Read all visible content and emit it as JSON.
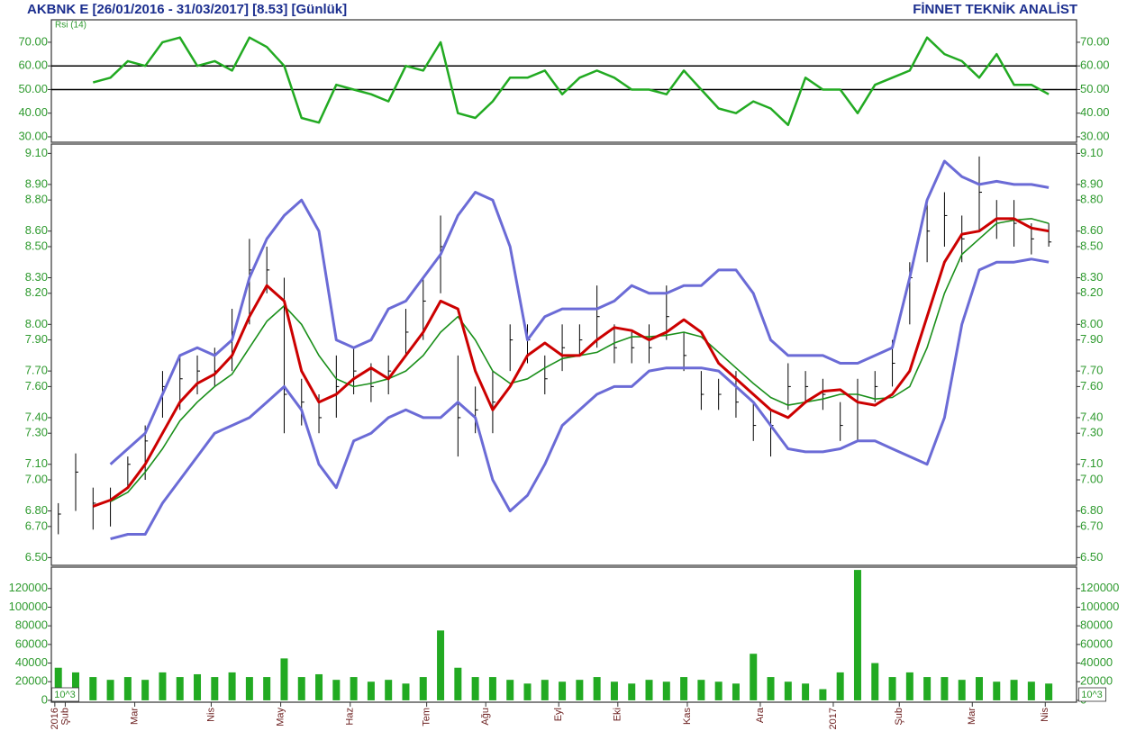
{
  "header": {
    "title": "AKBNK E  [26/01/2016 - 31/03/2017]  [8.53]  [Günlük]",
    "brand": "FİNNET TEKNİK ANALİST"
  },
  "chart_data": [
    {
      "type": "line",
      "label": "Rsi (14)",
      "color": "#22aa22",
      "levels": [
        50,
        60
      ],
      "x": [
        2,
        7,
        12,
        17,
        22,
        27,
        32,
        37,
        42,
        47,
        52,
        57,
        62,
        67,
        72,
        77,
        82,
        87,
        92,
        97,
        102,
        107,
        112,
        117,
        122,
        127,
        132,
        137,
        142,
        147,
        152,
        157,
        162,
        167,
        172,
        177,
        182,
        187,
        192,
        197,
        202,
        207,
        212,
        217,
        222,
        227,
        232,
        237,
        242,
        247,
        252,
        257,
        262,
        267,
        272,
        277,
        282,
        287
      ],
      "values": [
        null,
        null,
        53,
        55,
        62,
        60,
        70,
        72,
        60,
        62,
        58,
        72,
        68,
        60,
        38,
        36,
        52,
        50,
        48,
        45,
        60,
        58,
        70,
        40,
        38,
        45,
        55,
        55,
        58,
        48,
        55,
        58,
        55,
        50,
        50,
        48,
        58,
        50,
        42,
        40,
        45,
        42,
        35,
        55,
        50,
        50,
        40,
        52,
        55,
        58,
        72,
        65,
        62,
        55,
        65,
        52,
        52,
        48
      ],
      "xlim": [
        0,
        295
      ],
      "ylim": [
        27.7,
        79.5
      ],
      "yticks": [
        {
          "value": 30,
          "label": "30.00"
        },
        {
          "value": 40,
          "label": "40.00"
        },
        {
          "value": 50,
          "label": "50.00"
        },
        {
          "value": 60,
          "label": "60.00"
        },
        {
          "value": 70,
          "label": "70.00"
        }
      ]
    },
    {
      "type": "hlc",
      "color": "#000000",
      "x": [
        2,
        7,
        12,
        17,
        22,
        27,
        32,
        37,
        42,
        47,
        52,
        57,
        62,
        67,
        72,
        77,
        82,
        87,
        92,
        97,
        102,
        107,
        112,
        117,
        122,
        127,
        132,
        137,
        142,
        147,
        152,
        157,
        162,
        167,
        172,
        177,
        182,
        187,
        192,
        197,
        202,
        207,
        212,
        217,
        222,
        227,
        232,
        237,
        242,
        247,
        252,
        257,
        262,
        267,
        272,
        277,
        282,
        287
      ],
      "high": [
        6.85,
        7.17,
        6.95,
        6.95,
        7.15,
        7.35,
        7.7,
        7.8,
        7.8,
        7.85,
        8.1,
        8.55,
        8.5,
        8.3,
        7.65,
        7.55,
        7.8,
        7.85,
        7.75,
        7.8,
        8.1,
        8.3,
        8.7,
        7.8,
        7.6,
        7.7,
        8.0,
        8.0,
        7.8,
        8.0,
        8.0,
        8.25,
        8.0,
        7.95,
        8.0,
        8.25,
        7.95,
        7.7,
        7.65,
        7.7,
        7.5,
        7.45,
        7.75,
        7.7,
        7.65,
        7.5,
        7.65,
        7.7,
        7.9,
        8.4,
        8.8,
        8.85,
        8.7,
        9.08,
        8.8,
        8.8,
        8.65,
        8.65
      ],
      "low": [
        6.65,
        6.8,
        6.68,
        6.7,
        6.95,
        7.0,
        7.4,
        7.45,
        7.55,
        7.6,
        7.7,
        8.0,
        8.2,
        7.3,
        7.35,
        7.3,
        7.4,
        7.55,
        7.5,
        7.55,
        7.8,
        7.9,
        8.2,
        7.15,
        7.3,
        7.3,
        7.7,
        7.75,
        7.55,
        7.7,
        7.8,
        7.85,
        7.75,
        7.75,
        7.75,
        7.9,
        7.7,
        7.45,
        7.45,
        7.4,
        7.25,
        7.15,
        7.45,
        7.5,
        7.45,
        7.25,
        7.25,
        7.5,
        7.6,
        8.0,
        8.4,
        8.5,
        8.4,
        8.6,
        8.55,
        8.5,
        8.45,
        8.5
      ],
      "close": [
        6.78,
        7.05,
        6.85,
        6.88,
        7.1,
        7.25,
        7.6,
        7.65,
        7.7,
        7.7,
        7.95,
        8.35,
        8.35,
        7.55,
        7.5,
        7.4,
        7.6,
        7.7,
        7.6,
        7.7,
        7.95,
        8.15,
        8.5,
        7.4,
        7.45,
        7.5,
        7.9,
        7.9,
        7.65,
        7.85,
        7.9,
        8.05,
        7.85,
        7.85,
        7.85,
        8.05,
        7.8,
        7.55,
        7.55,
        7.5,
        7.35,
        7.35,
        7.6,
        7.6,
        7.55,
        7.35,
        7.5,
        7.6,
        7.75,
        8.3,
        8.6,
        8.7,
        8.55,
        8.85,
        8.65,
        8.65,
        8.55,
        8.53
      ],
      "overlays": [
        {
          "color": "#6b6bd6",
          "width": 3,
          "values": [
            null,
            null,
            null,
            7.1,
            7.2,
            7.3,
            7.55,
            7.8,
            7.85,
            7.8,
            7.9,
            8.3,
            8.55,
            8.7,
            8.8,
            8.6,
            7.9,
            7.85,
            7.9,
            8.1,
            8.15,
            8.3,
            8.45,
            8.7,
            8.85,
            8.8,
            8.5,
            7.9,
            8.05,
            8.1,
            8.1,
            8.1,
            8.15,
            8.25,
            8.2,
            8.2,
            8.25,
            8.25,
            8.35,
            8.35,
            8.2,
            7.9,
            7.8,
            7.8,
            7.8,
            7.75,
            7.75,
            7.8,
            7.85,
            8.3,
            8.8,
            9.05,
            8.95,
            8.9,
            8.92,
            8.9,
            8.9,
            8.88
          ]
        },
        {
          "color": "#6b6bd6",
          "width": 3,
          "values": [
            null,
            null,
            null,
            6.62,
            6.65,
            6.65,
            6.85,
            7.0,
            7.15,
            7.3,
            7.35,
            7.4,
            7.5,
            7.6,
            7.45,
            7.1,
            6.95,
            7.25,
            7.3,
            7.4,
            7.45,
            7.4,
            7.4,
            7.5,
            7.4,
            7.0,
            6.8,
            6.9,
            7.1,
            7.35,
            7.45,
            7.55,
            7.6,
            7.6,
            7.7,
            7.72,
            7.72,
            7.72,
            7.7,
            7.6,
            7.5,
            7.35,
            7.2,
            7.18,
            7.18,
            7.2,
            7.25,
            7.25,
            7.2,
            7.15,
            7.1,
            7.4,
            8.0,
            8.35,
            8.4,
            8.4,
            8.42,
            8.4
          ]
        },
        {
          "color": "#1a8f1a",
          "width": 1.6,
          "values": [
            null,
            null,
            null,
            6.86,
            6.92,
            7.05,
            7.2,
            7.38,
            7.5,
            7.6,
            7.68,
            7.85,
            8.02,
            8.12,
            8.0,
            7.8,
            7.65,
            7.6,
            7.62,
            7.65,
            7.7,
            7.8,
            7.95,
            8.05,
            7.9,
            7.7,
            7.62,
            7.65,
            7.72,
            7.78,
            7.8,
            7.82,
            7.88,
            7.92,
            7.92,
            7.93,
            7.95,
            7.92,
            7.82,
            7.72,
            7.62,
            7.53,
            7.48,
            7.5,
            7.52,
            7.55,
            7.55,
            7.52,
            7.53,
            7.6,
            7.85,
            8.2,
            8.45,
            8.55,
            8.65,
            8.67,
            8.68,
            8.65
          ]
        },
        {
          "color": "#cc0000",
          "width": 3,
          "values": [
            null,
            null,
            6.83,
            6.87,
            6.95,
            7.1,
            7.3,
            7.5,
            7.62,
            7.68,
            7.8,
            8.05,
            8.25,
            8.15,
            7.7,
            7.5,
            7.55,
            7.65,
            7.72,
            7.65,
            7.8,
            7.95,
            8.15,
            8.1,
            7.7,
            7.45,
            7.6,
            7.8,
            7.88,
            7.8,
            7.8,
            7.9,
            7.98,
            7.96,
            7.9,
            7.95,
            8.03,
            7.95,
            7.75,
            7.65,
            7.55,
            7.45,
            7.4,
            7.5,
            7.57,
            7.58,
            7.5,
            7.48,
            7.55,
            7.7,
            8.05,
            8.4,
            8.58,
            8.6,
            8.68,
            8.68,
            8.62,
            8.6
          ]
        }
      ],
      "xlim": [
        0,
        295
      ],
      "ylim": [
        6.45,
        9.16
      ],
      "yticks": [
        {
          "value": 6.5,
          "label": "6.50"
        },
        {
          "value": 6.7,
          "label": "6.70"
        },
        {
          "value": 6.8,
          "label": "6.80"
        },
        {
          "value": 7.0,
          "label": "7.00"
        },
        {
          "value": 7.1,
          "label": "7.10"
        },
        {
          "value": 7.3,
          "label": "7.30"
        },
        {
          "value": 7.4,
          "label": "7.40"
        },
        {
          "value": 7.6,
          "label": "7.60"
        },
        {
          "value": 7.7,
          "label": "7.70"
        },
        {
          "value": 7.9,
          "label": "7.90"
        },
        {
          "value": 8.0,
          "label": "8.00"
        },
        {
          "value": 8.2,
          "label": "8.20"
        },
        {
          "value": 8.3,
          "label": "8.30"
        },
        {
          "value": 8.5,
          "label": "8.50"
        },
        {
          "value": 8.6,
          "label": "8.60"
        },
        {
          "value": 8.8,
          "label": "8.80"
        },
        {
          "value": 8.9,
          "label": "8.90"
        },
        {
          "value": 9.1,
          "label": "9.10"
        }
      ]
    },
    {
      "type": "bar",
      "color": "#22aa22",
      "unit_label": "10^3",
      "x": [
        2,
        7,
        12,
        17,
        22,
        27,
        32,
        37,
        42,
        47,
        52,
        57,
        62,
        67,
        72,
        77,
        82,
        87,
        92,
        97,
        102,
        107,
        112,
        117,
        122,
        127,
        132,
        137,
        142,
        147,
        152,
        157,
        162,
        167,
        172,
        177,
        182,
        187,
        192,
        197,
        202,
        207,
        212,
        217,
        222,
        227,
        232,
        237,
        242,
        247,
        252,
        257,
        262,
        267,
        272,
        277,
        282,
        287
      ],
      "values": [
        35000,
        30000,
        25000,
        22000,
        25000,
        22000,
        30000,
        25000,
        28000,
        25000,
        30000,
        25000,
        25000,
        45000,
        25000,
        28000,
        22000,
        25000,
        20000,
        22000,
        18000,
        25000,
        75000,
        35000,
        25000,
        25000,
        22000,
        18000,
        22000,
        20000,
        22000,
        25000,
        20000,
        18000,
        22000,
        20000,
        25000,
        22000,
        20000,
        18000,
        50000,
        25000,
        20000,
        18000,
        12000,
        30000,
        140000,
        40000,
        25000,
        30000,
        25000,
        25000,
        22000,
        25000,
        20000,
        22000,
        20000,
        18000
      ],
      "xlim": [
        0,
        295
      ],
      "ylim": [
        -2000,
        143000
      ],
      "yticks": [
        0,
        20000,
        40000,
        60000,
        80000,
        100000,
        120000
      ],
      "xticks": [
        {
          "value": 1,
          "label": "2016"
        },
        {
          "value": 4,
          "label": "Şub"
        },
        {
          "value": 24,
          "label": "Mar"
        },
        {
          "value": 46,
          "label": "Nis"
        },
        {
          "value": 66,
          "label": "May"
        },
        {
          "value": 86,
          "label": "Haz"
        },
        {
          "value": 108,
          "label": "Tem"
        },
        {
          "value": 125,
          "label": "Ağu"
        },
        {
          "value": 146,
          "label": "Eyl"
        },
        {
          "value": 163,
          "label": "Eki"
        },
        {
          "value": 183,
          "label": "Kas"
        },
        {
          "value": 204,
          "label": "Ara"
        },
        {
          "value": 225,
          "label": "2017"
        },
        {
          "value": 244,
          "label": "Şub"
        },
        {
          "value": 265,
          "label": "Mar"
        },
        {
          "value": 286,
          "label": "Nis"
        }
      ]
    }
  ]
}
